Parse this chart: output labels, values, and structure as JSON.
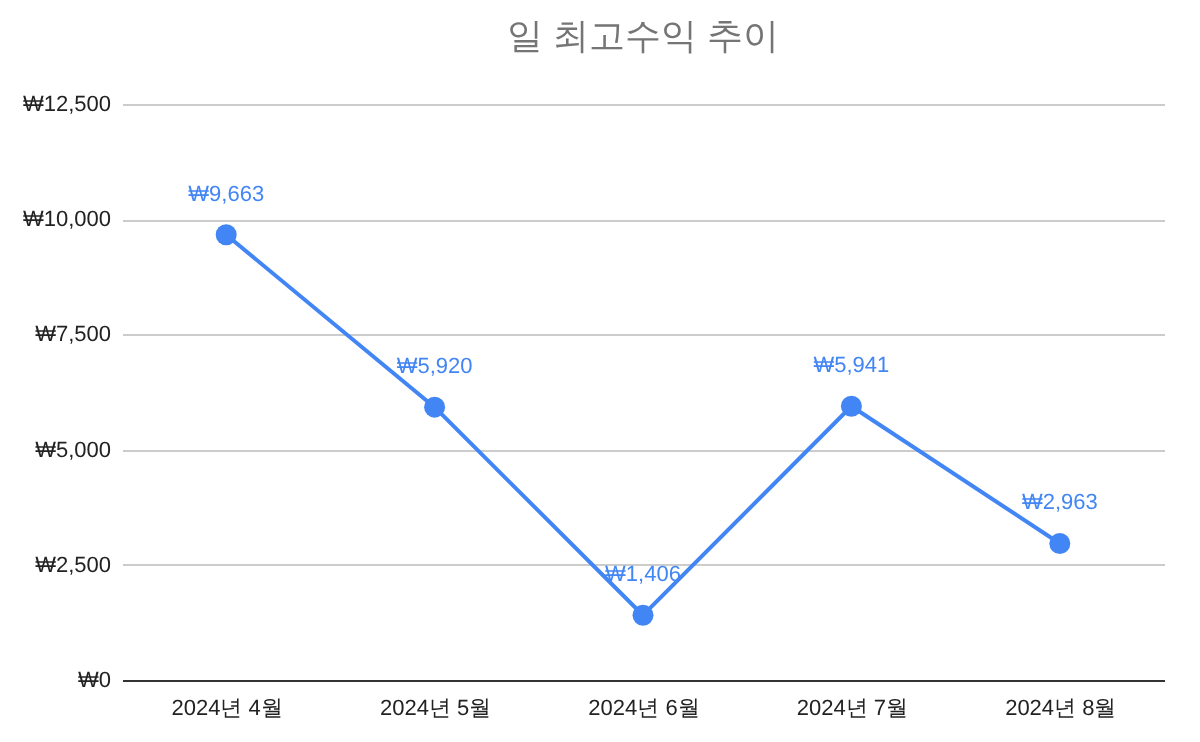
{
  "chart_data": {
    "type": "line",
    "title": "일 최고수익 추이",
    "categories": [
      "2024년 4월",
      "2024년 5월",
      "2024년 6월",
      "2024년 7월",
      "2024년 8월"
    ],
    "series": [
      {
        "color": "#4285f4",
        "values": [
          9663,
          5920,
          1406,
          5941,
          2963
        ],
        "value_labels": [
          "₩9,663",
          "₩5,920",
          "₩1,406",
          "₩5,941",
          "₩2,963"
        ]
      }
    ],
    "ylim": [
      0,
      12500
    ],
    "yticks": [
      {
        "value": 0,
        "label": "₩0"
      },
      {
        "value": 2500,
        "label": "₩2,500"
      },
      {
        "value": 5000,
        "label": "₩5,000"
      },
      {
        "value": 7500,
        "label": "₩7,500"
      },
      {
        "value": 10000,
        "label": "₩10,000"
      },
      {
        "value": 12500,
        "label": "₩12,500"
      }
    ],
    "grid": "y",
    "marker": "circle",
    "line_style": "solid"
  }
}
